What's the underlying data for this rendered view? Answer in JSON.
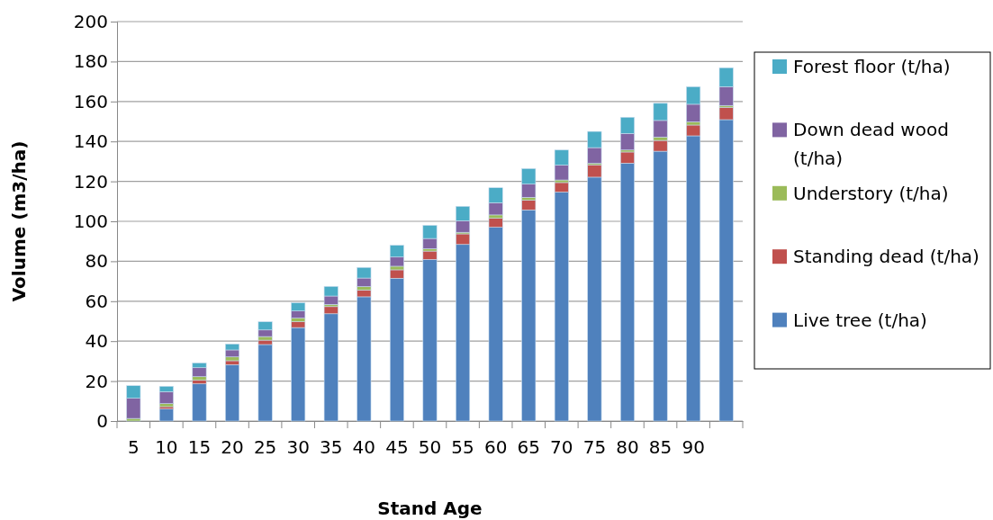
{
  "chart_data": {
    "type": "bar",
    "stacked": true,
    "xlabel": "Stand Age",
    "ylabel": "Volume (m3/ha)",
    "categories": [
      "5",
      "10",
      "15",
      "20",
      "25",
      "30",
      "35",
      "40",
      "45",
      "50",
      "55",
      "60",
      "65",
      "70",
      "75",
      "80",
      "85",
      "90",
      null
    ],
    "ylim": [
      0,
      200
    ],
    "yticks": [
      0,
      20,
      40,
      60,
      80,
      100,
      120,
      140,
      160,
      180,
      200
    ],
    "grid": "y",
    "legend": "right",
    "series": [
      {
        "name": "Live tree (t/ha)",
        "color": "#4f81bd",
        "values": [
          0,
          6.0,
          18.6,
          28.2,
          38.3,
          46.8,
          53.7,
          62.2,
          71.5,
          80.9,
          88.4,
          97,
          105.7,
          114.6,
          122.1,
          129.1,
          135.1,
          142.8,
          150.9
        ]
      },
      {
        "name": "Standing dead (t/ha)",
        "color": "#c0504d",
        "values": [
          0,
          1.2,
          1.8,
          2.0,
          2.2,
          2.9,
          3.6,
          3.4,
          4.2,
          4.2,
          5.3,
          4.5,
          4.8,
          4.8,
          6.2,
          5.6,
          5.4,
          5.4,
          6.2
        ]
      },
      {
        "name": "Understory (t/ha)",
        "color": "#9bbb59",
        "values": [
          1.3,
          1.5,
          1.8,
          1.9,
          1.8,
          1.8,
          1.1,
          1.7,
          1.8,
          1.2,
          0.8,
          1.7,
          1.5,
          1.3,
          0.7,
          1.0,
          1.7,
          1.6,
          0.9
        ]
      },
      {
        "name": "Down dead wood (t/ha)",
        "color": "#8064a2",
        "values": [
          10.1,
          6.0,
          4.5,
          3.5,
          3.3,
          3.6,
          4.2,
          4.3,
          4.6,
          5.1,
          5.8,
          6.1,
          6.6,
          7.4,
          7.9,
          8.3,
          8.3,
          8.8,
          9.4
        ]
      },
      {
        "name": "Forest floor (t/ha)",
        "color": "#4bacc6",
        "values": [
          6.3,
          2.7,
          2.4,
          3.0,
          4.1,
          4.1,
          4.8,
          5.3,
          5.9,
          6.6,
          7.2,
          7.5,
          7.8,
          7.6,
          8.1,
          8.1,
          8.6,
          8.8,
          9.5
        ]
      }
    ]
  }
}
